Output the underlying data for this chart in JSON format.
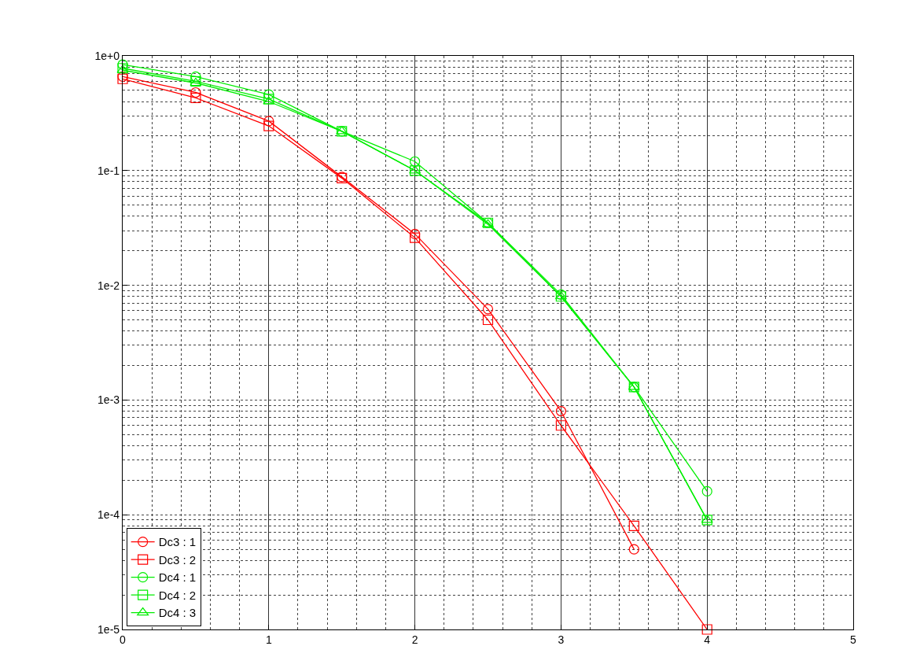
{
  "chart_data": {
    "type": "line",
    "log": "y",
    "grid": true,
    "legend": "bottom left",
    "x": [
      0,
      0.5,
      1,
      1.5,
      2,
      2.5,
      3,
      3.5,
      4
    ],
    "xlim": [
      0,
      5
    ],
    "xticks": [
      0,
      1,
      2,
      3,
      4,
      5
    ],
    "ylim": [
      1e-05,
      1
    ],
    "yticks": [
      {
        "value": 1e-05,
        "label": "1e-5"
      },
      {
        "value": 0.0001,
        "label": "1e-4"
      },
      {
        "value": 0.001,
        "label": "1e-3"
      },
      {
        "value": 0.01,
        "label": "1e-2"
      },
      {
        "value": 0.1,
        "label": "1e-1"
      },
      {
        "value": 1,
        "label": "1e+0"
      }
    ],
    "series": [
      {
        "name": "Dc3 : 1",
        "color": "#ff0000",
        "marker": "circle",
        "values": [
          0.66,
          0.48,
          0.27,
          0.088,
          0.028,
          0.0062,
          0.0008,
          5e-05,
          null
        ]
      },
      {
        "name": "Dc3 : 2",
        "color": "#ff0000",
        "marker": "square",
        "values": [
          0.63,
          0.43,
          0.245,
          0.086,
          0.026,
          0.005,
          0.0006,
          8e-05,
          1e-05
        ]
      },
      {
        "name": "Dc4 : 1",
        "color": "#00ee00",
        "marker": "circle",
        "values": [
          0.84,
          0.66,
          0.46,
          0.22,
          0.12,
          0.035,
          0.0083,
          0.0013,
          0.00016
        ]
      },
      {
        "name": "Dc4 : 2",
        "color": "#00ee00",
        "marker": "square",
        "values": [
          0.78,
          0.6,
          0.42,
          0.22,
          0.1,
          0.035,
          0.008,
          0.0013,
          9e-05
        ]
      },
      {
        "name": "Dc4 : 3",
        "color": "#00ee00",
        "marker": "triangle",
        "values": [
          0.75,
          0.58,
          0.4,
          0.22,
          0.1,
          0.034,
          0.008,
          0.0013,
          9e-05
        ]
      }
    ]
  }
}
